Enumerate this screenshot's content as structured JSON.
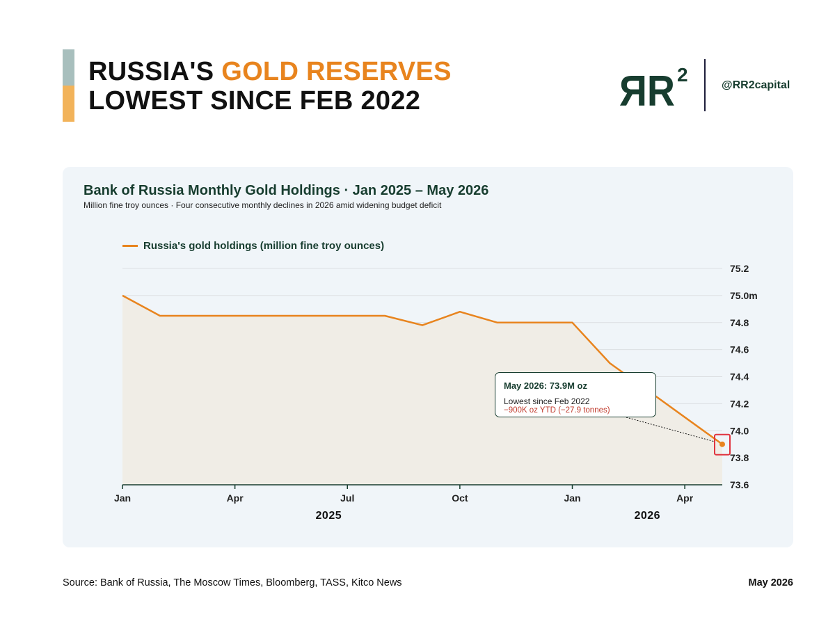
{
  "header": {
    "title_prefix": "RUSSIA'S ",
    "title_highlight": "GOLD RESERVES",
    "title_line2": "LOWEST SINCE FEB 2022",
    "logo_text": "ЯR",
    "logo_superscript": "2",
    "handle": "@RR2capital"
  },
  "colors": {
    "accent_orange": "#e8841e",
    "dark_green": "#173d2f",
    "highlight_red": "#e0343f",
    "annotation_red": "#c0392b",
    "panel_bg": "#f0f5f9",
    "area_fill": "#f0ede6"
  },
  "chart_data": {
    "type": "area",
    "title": "Bank of Russia Monthly Gold Holdings · Jan 2025 – May 2026",
    "subtitle": "Million fine troy ounces · Four consecutive monthly declines in 2026 amid widening budget deficit",
    "legend": "Russia's gold holdings (million fine troy ounces)",
    "legend_position": "top-left",
    "x": [
      "2025-01",
      "2025-02",
      "2025-03",
      "2025-04",
      "2025-05",
      "2025-06",
      "2025-07",
      "2025-08",
      "2025-09",
      "2025-10",
      "2025-11",
      "2025-12",
      "2026-01",
      "2026-02",
      "2026-03",
      "2026-04",
      "2026-05"
    ],
    "series": [
      {
        "name": "Russia's gold holdings (million fine troy ounces)",
        "values": [
          75.0,
          74.85,
          74.85,
          74.85,
          74.85,
          74.85,
          74.85,
          74.85,
          74.78,
          74.88,
          74.8,
          74.8,
          74.8,
          74.5,
          74.3,
          74.1,
          73.9
        ]
      }
    ],
    "ylim": [
      73.6,
      75.2
    ],
    "y_axis_side": "right",
    "y_ticks": [
      "75.2",
      "75.0m",
      "74.8",
      "74.6",
      "74.4",
      "74.2",
      "74.0",
      "73.8",
      "73.6"
    ],
    "x_ticks": [
      {
        "label": "Jan",
        "x": "2025-01"
      },
      {
        "label": "Apr",
        "x": "2025-04"
      },
      {
        "label": "Jul",
        "x": "2025-07"
      },
      {
        "label": "Oct",
        "x": "2025-10"
      },
      {
        "label": "Jan",
        "x": "2026-01"
      },
      {
        "label": "Apr",
        "x": "2026-04"
      }
    ],
    "year_labels": [
      "2025",
      "2026"
    ],
    "grid": true,
    "annotation": {
      "x": "2026-05",
      "y": 73.9,
      "title": "May 2026: 73.9M oz",
      "line1": "Lowest since Feb 2022",
      "line2": "−900K oz YTD (−27.9 tonnes)"
    }
  },
  "footer": {
    "source": "Source: Bank of Russia, The Moscow Times, Bloomberg, TASS, Kitco News",
    "date": "May 2026"
  }
}
